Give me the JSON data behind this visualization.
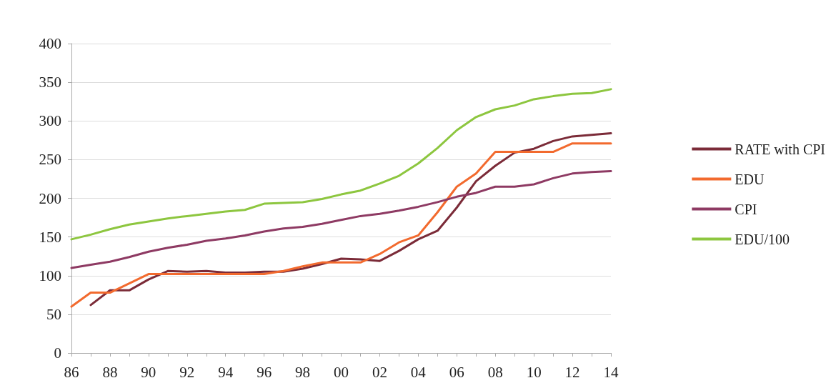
{
  "chart_data": {
    "type": "line",
    "categories": [
      "86",
      null,
      "88",
      null,
      "90",
      null,
      "92",
      null,
      "94",
      null,
      "96",
      null,
      "98",
      null,
      "00",
      null,
      "02",
      null,
      "04",
      null,
      "06",
      null,
      "08",
      null,
      "10",
      null,
      "12",
      null,
      "14"
    ],
    "series": [
      {
        "name": "RATE with CPI",
        "color": "#7b2b38",
        "values": [
          null,
          62,
          81,
          81,
          95,
          106,
          105,
          106,
          104,
          104,
          105,
          105,
          109,
          115,
          122,
          121,
          119,
          132,
          147,
          158,
          188,
          222,
          242,
          259,
          264,
          274,
          280,
          282,
          284
        ]
      },
      {
        "name": "EDU",
        "color": "#f26a2e",
        "values": [
          60,
          78,
          78,
          90,
          102,
          102,
          102,
          102,
          102,
          102,
          102,
          106,
          112,
          117,
          117,
          117,
          128,
          143,
          152,
          182,
          215,
          232,
          260,
          260,
          260,
          260,
          271,
          271,
          271
        ]
      },
      {
        "name": "CPI",
        "color": "#8e3a63",
        "values": [
          110,
          114,
          118,
          124,
          131,
          136,
          140,
          145,
          148,
          152,
          157,
          161,
          163,
          167,
          172,
          177,
          180,
          184,
          189,
          195,
          202,
          207,
          215,
          215,
          218,
          226,
          232,
          234,
          235
        ]
      },
      {
        "name": "EDU/100",
        "color": "#8dc63f",
        "values": [
          147,
          153,
          160,
          166,
          170,
          174,
          177,
          180,
          183,
          185,
          193,
          194,
          195,
          199,
          205,
          210,
          219,
          229,
          245,
          265,
          288,
          305,
          315,
          320,
          328,
          332,
          335,
          336,
          341
        ]
      }
    ],
    "ylim": [
      0,
      400
    ],
    "yticks": [
      0,
      50,
      100,
      150,
      200,
      250,
      300,
      350,
      400
    ],
    "grid": "y",
    "legend": "right",
    "marker": "none",
    "line_style": "solid"
  }
}
